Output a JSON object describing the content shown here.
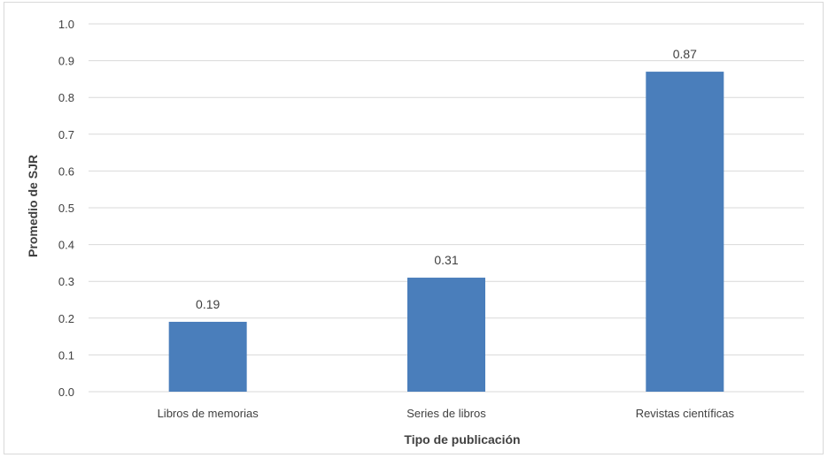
{
  "chart_data": {
    "type": "bar",
    "categories": [
      "Libros de memorias",
      "Series de libros",
      "Revistas científicas"
    ],
    "values": [
      0.19,
      0.31,
      0.87
    ],
    "data_labels": [
      "0.19",
      "0.31",
      "0.87"
    ],
    "xlabel": "Tipo de publicación",
    "ylabel": "Promedio de SJR",
    "ylim": [
      0,
      1.0
    ],
    "yticks": [
      "0.0",
      "0.1",
      "0.2",
      "0.3",
      "0.4",
      "0.5",
      "0.6",
      "0.7",
      "0.8",
      "0.9",
      "1.0"
    ],
    "grid": true,
    "legend": "none",
    "colors": {
      "bar": "#4a7ebb",
      "grid": "#d9d9d9",
      "text": "#404040"
    }
  }
}
